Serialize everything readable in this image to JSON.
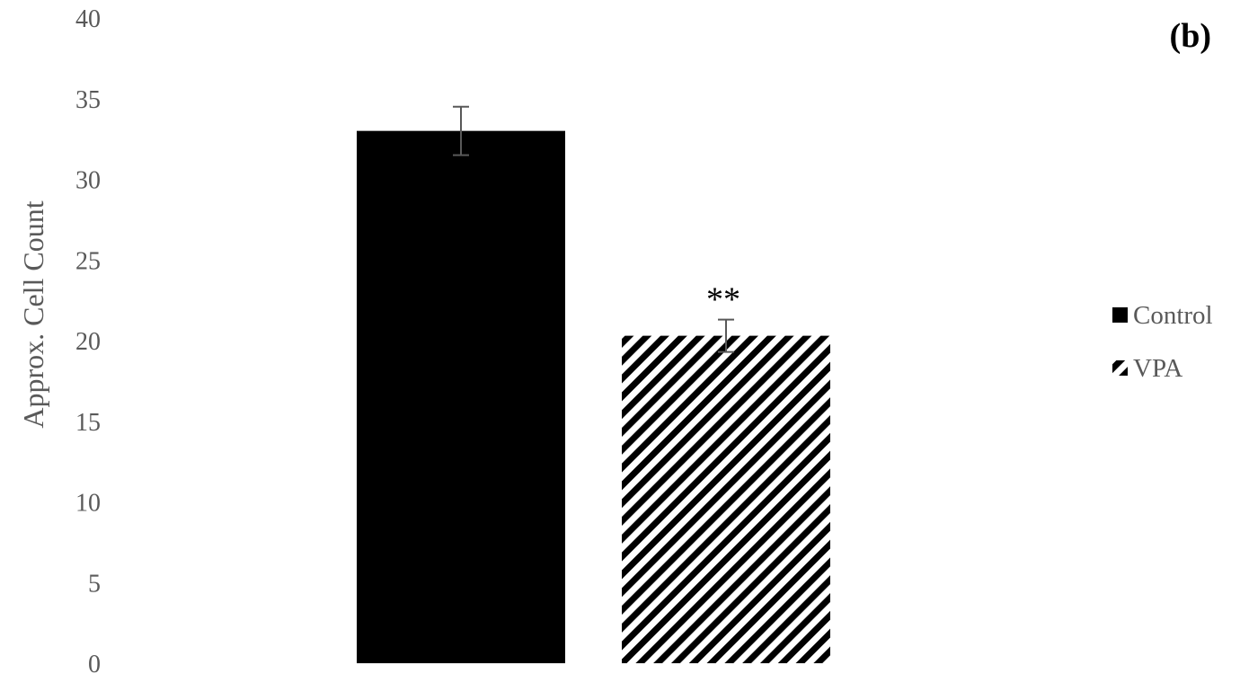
{
  "chart_data": {
    "type": "bar",
    "panel_label": "(b)",
    "ylabel": "Approx. Cell Count",
    "ylim": [
      0,
      40
    ],
    "yticks": [
      0,
      5,
      10,
      15,
      20,
      25,
      30,
      35,
      40
    ],
    "grid": false,
    "legend_position": "right",
    "series": [
      {
        "name": "Control",
        "value": 33.0,
        "error": 1.5,
        "fill": "solid",
        "color": "#000000",
        "annotation": ""
      },
      {
        "name": "VPA",
        "value": 20.3,
        "error": 1.0,
        "fill": "diagonal-hatch",
        "color": "#000000",
        "annotation": "**"
      }
    ],
    "error_bar_color": "#595959"
  }
}
